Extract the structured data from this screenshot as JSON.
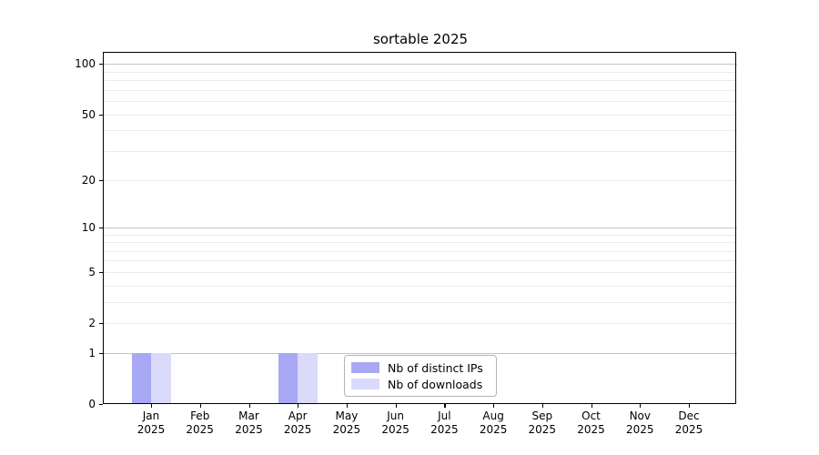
{
  "chart_data": {
    "type": "bar",
    "title": "sortable 2025",
    "categories": [
      "Jan",
      "Feb",
      "Mar",
      "Apr",
      "May",
      "Jun",
      "Jul",
      "Aug",
      "Sep",
      "Oct",
      "Nov",
      "Dec"
    ],
    "year_label": "2025",
    "series": [
      {
        "name": "Nb of distinct IPs",
        "color": "#a8a8f5",
        "values": [
          1,
          0,
          0,
          1,
          0,
          0,
          0,
          0,
          0,
          0,
          0,
          0
        ]
      },
      {
        "name": "Nb of downloads",
        "color": "#dadafa",
        "values": [
          1,
          0,
          0,
          1,
          0,
          0,
          0,
          0,
          0,
          0,
          0,
          0
        ]
      }
    ],
    "yscale": "log1p",
    "ylim": [
      0,
      118
    ],
    "yticks": [
      0,
      1,
      2,
      5,
      10,
      20,
      50,
      100
    ],
    "major_gridlines": [
      1,
      10,
      100
    ],
    "minor_gridlines": [
      2,
      3,
      4,
      5,
      6,
      7,
      8,
      9,
      20,
      30,
      40,
      50,
      60,
      70,
      80,
      90
    ],
    "grid_color_major": "#c4c4c4",
    "grid_color_minor": "#ebebeb",
    "legend_position": "lower center",
    "xlabel": "",
    "ylabel": ""
  }
}
